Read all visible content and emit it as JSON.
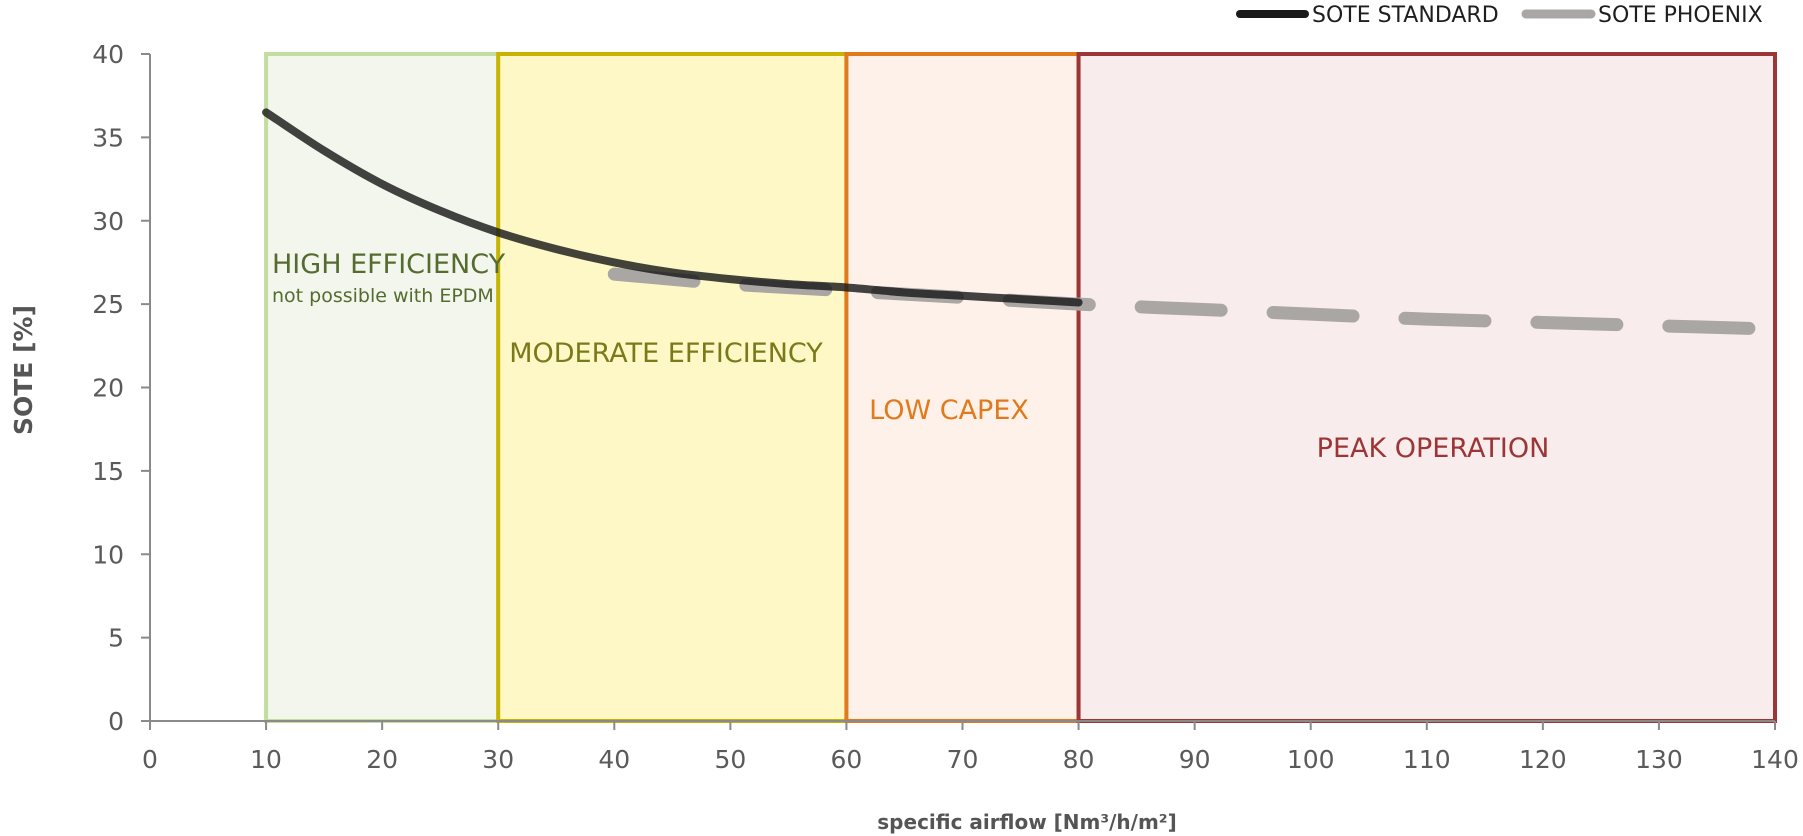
{
  "chart_data": {
    "type": "line",
    "xlabel": "specific airflow [Nm³/h/m²]",
    "ylabel": "SOTE [%]",
    "xlim": [
      0,
      140
    ],
    "ylim": [
      0,
      40
    ],
    "x_ticks": [
      0,
      10,
      20,
      30,
      40,
      50,
      60,
      70,
      80,
      90,
      100,
      110,
      120,
      130,
      140
    ],
    "y_ticks": [
      0,
      5,
      10,
      15,
      20,
      25,
      30,
      35,
      40
    ],
    "grid": false,
    "legend_position": "top-right",
    "series": [
      {
        "name": "SOTE STANDARD",
        "color": "#1a1a1a",
        "style": "solid",
        "x": [
          10,
          15,
          20,
          25,
          30,
          35,
          40,
          45,
          50,
          55,
          60,
          65,
          70,
          75,
          80
        ],
        "y": [
          36.5,
          34.2,
          32.2,
          30.6,
          29.3,
          28.3,
          27.5,
          26.9,
          26.5,
          26.2,
          26.0,
          25.7,
          25.5,
          25.3,
          25.1
        ]
      },
      {
        "name": "SOTE PHOENIX",
        "color": "#a9a6a4",
        "style": "dashed",
        "x": [
          40,
          50,
          60,
          70,
          80,
          90,
          100,
          110,
          120,
          130,
          140
        ],
        "y": [
          26.8,
          26.2,
          25.8,
          25.4,
          25.0,
          24.7,
          24.4,
          24.1,
          23.9,
          23.7,
          23.5
        ]
      }
    ],
    "zones": [
      {
        "x0": 10,
        "x1": 30,
        "label": "HIGH EFFICIENCY",
        "sublabel": "not possible with EPDM",
        "border": "#c5dca0",
        "fill": "#f2f6ec",
        "text_color": "#556b2f"
      },
      {
        "x0": 30,
        "x1": 60,
        "label": "MODERATE EFFICIENCY",
        "sublabel": "",
        "border": "#c8b400",
        "fill": "#fdf8c6",
        "text_color": "#7a7a1a"
      },
      {
        "x0": 60,
        "x1": 80,
        "label": "LOW CAPEX",
        "sublabel": "",
        "border": "#e07a1c",
        "fill": "#fdf1ea",
        "text_color": "#e07a1c"
      },
      {
        "x0": 80,
        "x1": 140,
        "label": "PEAK OPERATION",
        "sublabel": "",
        "border": "#9c3535",
        "fill": "#f9eced",
        "text_color": "#9c3535"
      }
    ]
  }
}
